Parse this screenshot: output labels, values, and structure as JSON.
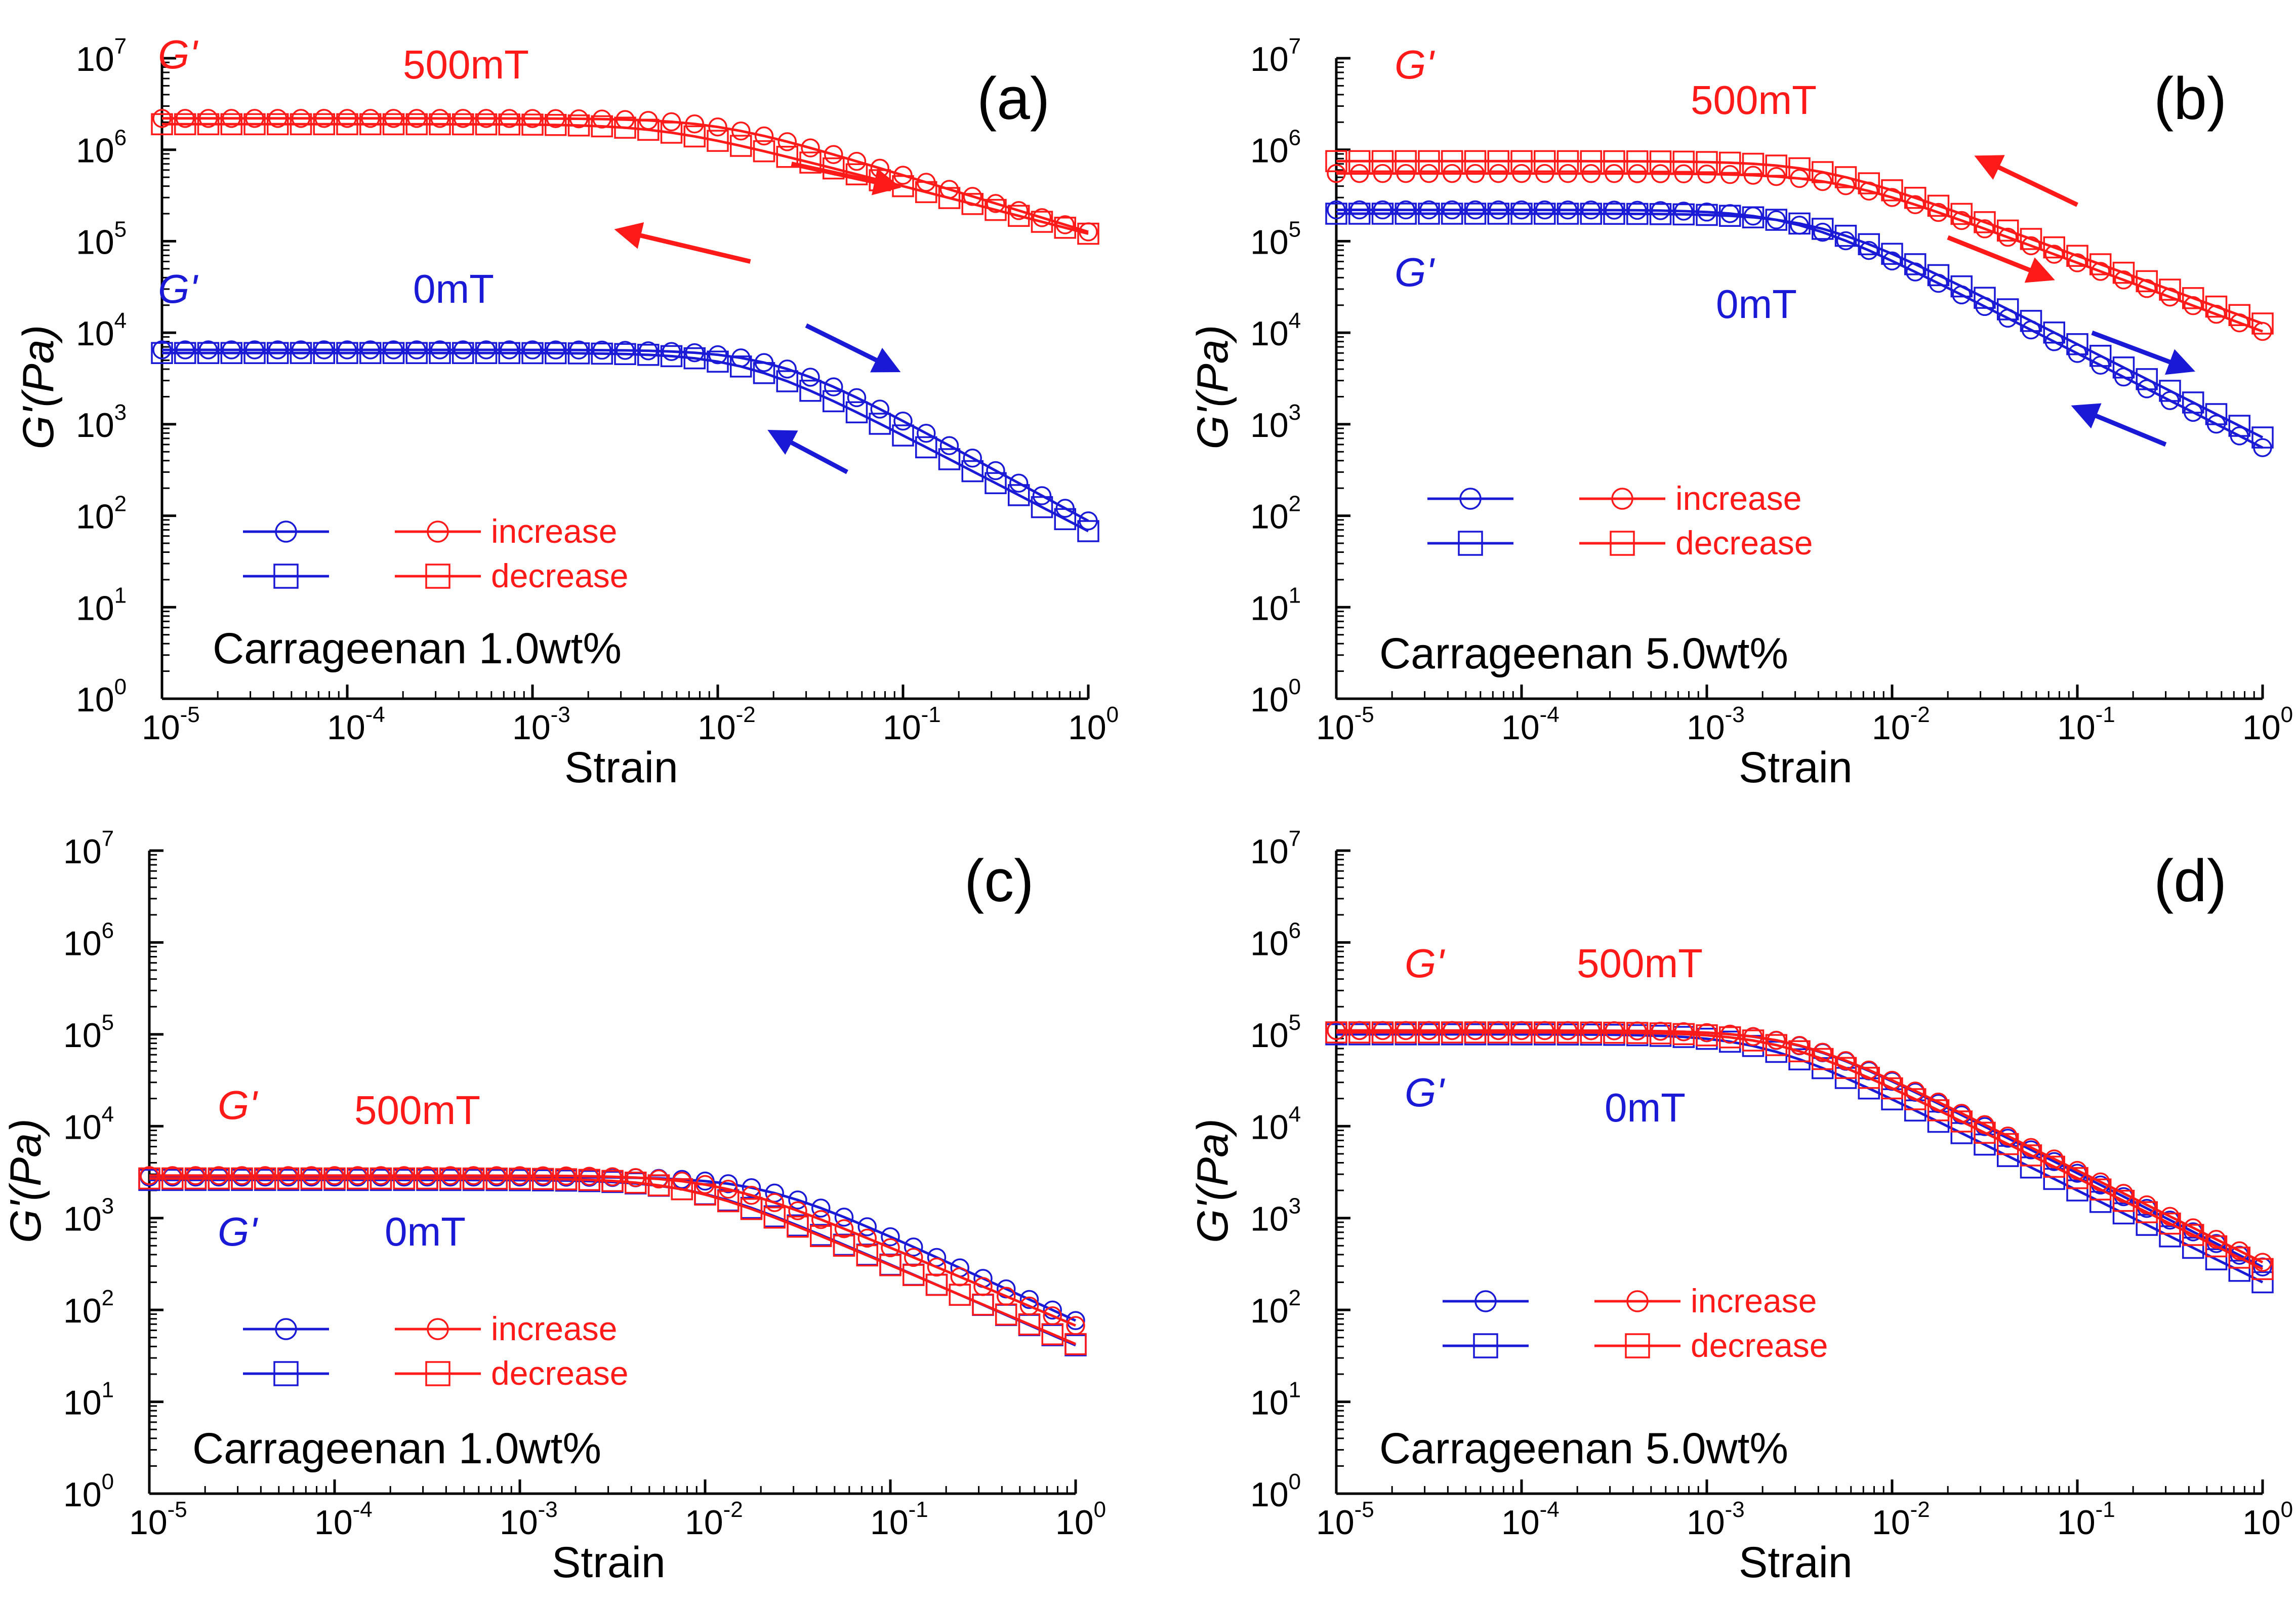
{
  "figure": {
    "colors": {
      "magnet": "#ff1a1a",
      "nomagnet": "#1a1ad6",
      "axis": "#000000"
    },
    "icons": {
      "increase": "open-circle-marker",
      "decrease": "open-square-marker",
      "arrow": "arrow-icon"
    }
  },
  "chart_data": [
    {
      "type": "line",
      "panel": "(a)",
      "sample": "Carrageenan 1.0wt%",
      "xlabel": "Strain",
      "ylabel": "G'(Pa)",
      "xscale": "log",
      "yscale": "log",
      "xlim": [
        1e-05,
        1
      ],
      "ylim": [
        1,
        10000000.0
      ],
      "xticks": [
        {
          "base": "10",
          "exp": "-5"
        },
        {
          "base": "10",
          "exp": "-4"
        },
        {
          "base": "10",
          "exp": "-3"
        },
        {
          "base": "10",
          "exp": "-2"
        },
        {
          "base": "10",
          "exp": "-1"
        },
        {
          "base": "10",
          "exp": "0"
        }
      ],
      "yticks": [
        {
          "base": "10",
          "exp": "0"
        },
        {
          "base": "10",
          "exp": "1"
        },
        {
          "base": "10",
          "exp": "2"
        },
        {
          "base": "10",
          "exp": "3"
        },
        {
          "base": "10",
          "exp": "4"
        },
        {
          "base": "10",
          "exp": "5"
        },
        {
          "base": "10",
          "exp": "6"
        },
        {
          "base": "10",
          "exp": "7"
        }
      ],
      "annotations": [
        {
          "g": "G'",
          "field": "500mT",
          "group": "magnet"
        },
        {
          "g": "G'",
          "field": "0mT",
          "group": "nomagnet"
        }
      ],
      "legend": [
        "increase",
        "decrease"
      ],
      "series": [
        {
          "name": "500mT increase",
          "field": "500mT",
          "direction": "increase",
          "color": "#ff1a1a",
          "marker": "circle",
          "plateau": 2200000,
          "crit": 0.01,
          "slope": 0.62
        },
        {
          "name": "500mT decrease",
          "field": "500mT",
          "direction": "decrease",
          "color": "#ff1a1a",
          "marker": "square",
          "plateau": 1900000,
          "crit": 0.005,
          "slope": 0.52
        },
        {
          "name": "0mT increase",
          "field": "0mT",
          "direction": "increase",
          "color": "#1a1ad6",
          "marker": "circle",
          "plateau": 6500,
          "crit": 0.02,
          "slope": 1.1
        },
        {
          "name": "0mT decrease",
          "field": "0mT",
          "direction": "decrease",
          "color": "#1a1ad6",
          "marker": "square",
          "plateau": 6000,
          "crit": 0.014,
          "slope": 1.05
        }
      ],
      "arrows": [
        {
          "color": "#ff1a1a",
          "from": [
            0.025,
            700000
          ],
          "to": [
            0.09,
            400000
          ]
        },
        {
          "color": "#ff1a1a",
          "from": [
            0.015,
            60000
          ],
          "to": [
            0.003,
            130000
          ]
        },
        {
          "color": "#1a1ad6",
          "from": [
            0.03,
            12000
          ],
          "to": [
            0.09,
            4000
          ]
        },
        {
          "color": "#1a1ad6",
          "from": [
            0.05,
            300
          ],
          "to": [
            0.02,
            800
          ]
        }
      ]
    },
    {
      "type": "line",
      "panel": "(b)",
      "sample": "Carrageenan 5.0wt%",
      "xlabel": "Strain",
      "ylabel": "G'(Pa)",
      "xscale": "log",
      "yscale": "log",
      "xlim": [
        1e-05,
        1
      ],
      "ylim": [
        1,
        10000000.0
      ],
      "xticks": [
        {
          "base": "10",
          "exp": "-5"
        },
        {
          "base": "10",
          "exp": "-4"
        },
        {
          "base": "10",
          "exp": "-3"
        },
        {
          "base": "10",
          "exp": "-2"
        },
        {
          "base": "10",
          "exp": "-1"
        },
        {
          "base": "10",
          "exp": "0"
        }
      ],
      "yticks": [
        {
          "base": "10",
          "exp": "0"
        },
        {
          "base": "10",
          "exp": "1"
        },
        {
          "base": "10",
          "exp": "2"
        },
        {
          "base": "10",
          "exp": "3"
        },
        {
          "base": "10",
          "exp": "4"
        },
        {
          "base": "10",
          "exp": "5"
        },
        {
          "base": "10",
          "exp": "6"
        },
        {
          "base": "10",
          "exp": "7"
        }
      ],
      "annotations": [
        {
          "g": "G'",
          "field": "500mT",
          "group": "magnet"
        },
        {
          "g": "G'",
          "field": "0mT",
          "group": "nomagnet"
        }
      ],
      "legend": [
        "increase",
        "decrease"
      ],
      "series": [
        {
          "name": "500mT increase",
          "field": "500mT",
          "direction": "increase",
          "color": "#ff1a1a",
          "marker": "circle",
          "plateau": 550000,
          "crit": 0.005,
          "slope": 0.75
        },
        {
          "name": "500mT decrease",
          "field": "500mT",
          "direction": "decrease",
          "color": "#ff1a1a",
          "marker": "square",
          "plateau": 750000,
          "crit": 0.004,
          "slope": 0.74
        },
        {
          "name": "0mT increase",
          "field": "0mT",
          "direction": "increase",
          "color": "#1a1ad6",
          "marker": "circle",
          "plateau": 220000,
          "crit": 0.003,
          "slope": 1.03
        },
        {
          "name": "0mT decrease",
          "field": "0mT",
          "direction": "decrease",
          "color": "#1a1ad6",
          "marker": "square",
          "plateau": 200000,
          "crit": 0.004,
          "slope": 1.02
        }
      ],
      "arrows": [
        {
          "color": "#ff1a1a",
          "from": [
            0.1,
            250000
          ],
          "to": [
            0.03,
            800000
          ]
        },
        {
          "color": "#ff1a1a",
          "from": [
            0.02,
            110000
          ],
          "to": [
            0.07,
            40000
          ]
        },
        {
          "color": "#1a1ad6",
          "from": [
            0.12,
            10000
          ],
          "to": [
            0.4,
            4000
          ]
        },
        {
          "color": "#1a1ad6",
          "from": [
            0.3,
            600
          ],
          "to": [
            0.1,
            1500
          ]
        }
      ]
    },
    {
      "type": "line",
      "panel": "(c)",
      "sample": "Carrageenan 1.0wt%",
      "xlabel": "Strain",
      "ylabel": "G'(Pa)",
      "xscale": "log",
      "yscale": "log",
      "xlim": [
        1e-05,
        1
      ],
      "ylim": [
        1,
        10000000.0
      ],
      "xticks": [
        {
          "base": "10",
          "exp": "-5"
        },
        {
          "base": "10",
          "exp": "-4"
        },
        {
          "base": "10",
          "exp": "-3"
        },
        {
          "base": "10",
          "exp": "-2"
        },
        {
          "base": "10",
          "exp": "-1"
        },
        {
          "base": "10",
          "exp": "0"
        }
      ],
      "yticks": [
        {
          "base": "10",
          "exp": "0"
        },
        {
          "base": "10",
          "exp": "1"
        },
        {
          "base": "10",
          "exp": "2"
        },
        {
          "base": "10",
          "exp": "3"
        },
        {
          "base": "10",
          "exp": "4"
        },
        {
          "base": "10",
          "exp": "5"
        },
        {
          "base": "10",
          "exp": "6"
        },
        {
          "base": "10",
          "exp": "7"
        }
      ],
      "annotations": [
        {
          "g": "G'",
          "field": "500mT",
          "group": "magnet"
        },
        {
          "g": "G'",
          "field": "0mT",
          "group": "nomagnet"
        }
      ],
      "legend": [
        "increase",
        "decrease"
      ],
      "series": [
        {
          "name": "0mT increase",
          "field": "0mT",
          "direction": "increase",
          "color": "#1a1ad6",
          "marker": "circle",
          "plateau": 2800,
          "crit": 0.02,
          "slope": 0.92
        },
        {
          "name": "0mT decrease",
          "field": "0mT",
          "direction": "decrease",
          "color": "#1a1ad6",
          "marker": "square",
          "plateau": 2600,
          "crit": 0.009,
          "slope": 0.88
        },
        {
          "name": "500mT increase",
          "field": "500mT",
          "direction": "increase",
          "color": "#ff1a1a",
          "marker": "circle",
          "plateau": 2900,
          "crit": 0.012,
          "slope": 0.85
        },
        {
          "name": "500mT decrease",
          "field": "500mT",
          "direction": "decrease",
          "color": "#ff1a1a",
          "marker": "square",
          "plateau": 2700,
          "crit": 0.008,
          "slope": 0.86
        }
      ],
      "arrows": []
    },
    {
      "type": "line",
      "panel": "(d)",
      "sample": "Carrageenan 5.0wt%",
      "xlabel": "Strain",
      "ylabel": "G'(Pa)",
      "xscale": "log",
      "yscale": "log",
      "xlim": [
        1e-05,
        1
      ],
      "ylim": [
        1,
        10000000.0
      ],
      "xticks": [
        {
          "base": "10",
          "exp": "-5"
        },
        {
          "base": "10",
          "exp": "-4"
        },
        {
          "base": "10",
          "exp": "-3"
        },
        {
          "base": "10",
          "exp": "-2"
        },
        {
          "base": "10",
          "exp": "-1"
        },
        {
          "base": "10",
          "exp": "0"
        }
      ],
      "yticks": [
        {
          "base": "10",
          "exp": "0"
        },
        {
          "base": "10",
          "exp": "1"
        },
        {
          "base": "10",
          "exp": "2"
        },
        {
          "base": "10",
          "exp": "3"
        },
        {
          "base": "10",
          "exp": "4"
        },
        {
          "base": "10",
          "exp": "5"
        },
        {
          "base": "10",
          "exp": "6"
        },
        {
          "base": "10",
          "exp": "7"
        }
      ],
      "annotations": [
        {
          "g": "G'",
          "field": "500mT",
          "group": "magnet"
        },
        {
          "g": "G'",
          "field": "0mT",
          "group": "nomagnet"
        }
      ],
      "legend": [
        "increase",
        "decrease"
      ],
      "series": [
        {
          "name": "0mT increase",
          "field": "0mT",
          "direction": "increase",
          "color": "#1a1ad6",
          "marker": "circle",
          "plateau": 110000,
          "crit": 0.003,
          "slope": 1.02
        },
        {
          "name": "0mT decrease",
          "field": "0mT",
          "direction": "decrease",
          "color": "#1a1ad6",
          "marker": "square",
          "plateau": 100000,
          "crit": 0.002,
          "slope": 1.0
        },
        {
          "name": "500mT increase",
          "field": "500mT",
          "direction": "increase",
          "color": "#ff1a1a",
          "marker": "circle",
          "plateau": 110000,
          "crit": 0.003,
          "slope": 1.0
        },
        {
          "name": "500mT decrease",
          "field": "500mT",
          "direction": "decrease",
          "color": "#ff1a1a",
          "marker": "square",
          "plateau": 105000,
          "crit": 0.0025,
          "slope": 0.99
        }
      ],
      "arrows": []
    }
  ]
}
